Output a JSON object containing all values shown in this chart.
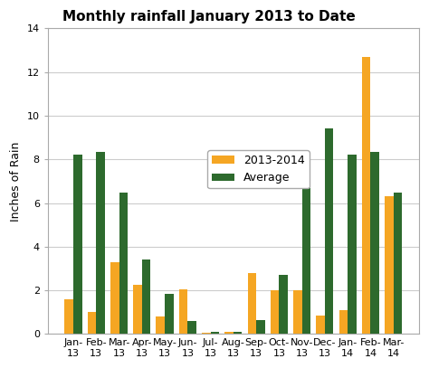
{
  "title": "Monthly rainfall January 2013 to Date",
  "ylabel": "Inches of Rain",
  "categories_line1": [
    "Jan-",
    "Feb-",
    "Mar-",
    "Apr-",
    "May-",
    "Jun-",
    "Jul-",
    "Aug-",
    "Sep-",
    "Oct-",
    "Nov-",
    "Dec-",
    "Jan-",
    "Feb-",
    "Mar-"
  ],
  "categories_line2": [
    "13",
    "13",
    "13",
    "13",
    "13",
    "13",
    "13",
    "13",
    "13",
    "13",
    "13",
    "13",
    "14",
    "14",
    "14"
  ],
  "values_2013_2014": [
    1.6,
    1.0,
    3.3,
    2.25,
    0.8,
    2.05,
    0.05,
    0.1,
    2.8,
    2.0,
    2.0,
    0.85,
    1.1,
    12.7,
    6.3
  ],
  "values_average": [
    8.2,
    8.35,
    6.5,
    3.4,
    1.85,
    0.6,
    0.1,
    0.1,
    0.65,
    2.7,
    6.7,
    9.4,
    8.2,
    8.35,
    6.5
  ],
  "color_2013_2014": "#F5A623",
  "color_average": "#2D6A2D",
  "ylim": [
    0,
    14
  ],
  "yticks": [
    0,
    2,
    4,
    6,
    8,
    10,
    12,
    14
  ],
  "legend_labels": [
    "2013-2014",
    "Average"
  ],
  "bar_width": 0.38,
  "title_fontsize": 11,
  "tick_fontsize": 8,
  "ylabel_fontsize": 9,
  "legend_fontsize": 9,
  "background_color": "#ffffff",
  "grid_color": "#cccccc",
  "spine_color": "#aaaaaa"
}
